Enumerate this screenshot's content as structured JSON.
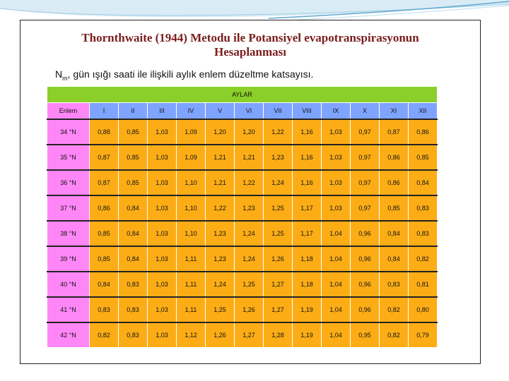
{
  "slide": {
    "title_line1": "Thornthwaite (1944) Metodu ile Potansiyel evapotranspirasyonun",
    "title_line2": "Hesaplanması",
    "subtitle_symbol": "N",
    "subtitle_subscript": "m",
    "subtitle_text": ", gün ışığı saati ile ilişkili aylık enlem düzeltme katsayısı."
  },
  "table": {
    "group_header": "AYLAR",
    "label_header": "Enlem",
    "months": [
      "I",
      "II",
      "III",
      "IV",
      "V",
      "VI",
      "VII",
      "VIII",
      "IX",
      "X",
      "XI",
      "XII"
    ],
    "rows": [
      {
        "lat": "34 °N",
        "values": [
          "0,88",
          "0,85",
          "1,03",
          "1,09",
          "1,20",
          "1,20",
          "1,22",
          "1,16",
          "1,03",
          "0,97",
          "0,87",
          "0,86"
        ]
      },
      {
        "lat": "35 °N",
        "values": [
          "0,87",
          "0,85",
          "1,03",
          "1,09",
          "1,21",
          "1,21",
          "1,23",
          "1,16",
          "1,03",
          "0,97",
          "0,86",
          "0,85"
        ]
      },
      {
        "lat": "36 °N",
        "values": [
          "0,87",
          "0,85",
          "1,03",
          "1,10",
          "1,21",
          "1,22",
          "1,24",
          "1,16",
          "1,03",
          "0,97",
          "0,86",
          "0,84"
        ]
      },
      {
        "lat": "37 °N",
        "values": [
          "0,86",
          "0,84",
          "1,03",
          "1,10",
          "1,22",
          "1,23",
          "1,25",
          "1,17",
          "1,03",
          "0,97",
          "0,85",
          "0,83"
        ]
      },
      {
        "lat": "38 °N",
        "values": [
          "0,85",
          "0,84",
          "1,03",
          "1,10",
          "1,23",
          "1,24",
          "1,25",
          "1,17",
          "1,04",
          "0,96",
          "0,84",
          "0,83"
        ]
      },
      {
        "lat": "39 °N",
        "values": [
          "0,85",
          "0,84",
          "1,03",
          "1,11",
          "1,23",
          "1,24",
          "1,26",
          "1,18",
          "1,04",
          "0,96",
          "0,84",
          "0,82"
        ]
      },
      {
        "lat": "40 °N",
        "values": [
          "0,84",
          "0,83",
          "1,03",
          "1,11",
          "1,24",
          "1,25",
          "1,27",
          "1,18",
          "1,04",
          "0,96",
          "0,83",
          "0,81"
        ]
      },
      {
        "lat": "41 °N",
        "values": [
          "0,83",
          "0,83",
          "1,03",
          "1,11",
          "1,25",
          "1,26",
          "1,27",
          "1,19",
          "1,04",
          "0,96",
          "0,82",
          "0,80"
        ]
      },
      {
        "lat": "42 °N",
        "values": [
          "0,82",
          "0,83",
          "1,03",
          "1,12",
          "1,26",
          "1,27",
          "1,28",
          "1,19",
          "1,04",
          "0,95",
          "0,82",
          "0,79"
        ]
      }
    ]
  },
  "colors": {
    "title": "#7b1c1c",
    "latitude_cells": "#ff86f6",
    "month_header": "#7fa4ff",
    "aylar_header": "#8bcf2a",
    "value_cells": "#fcad16"
  }
}
